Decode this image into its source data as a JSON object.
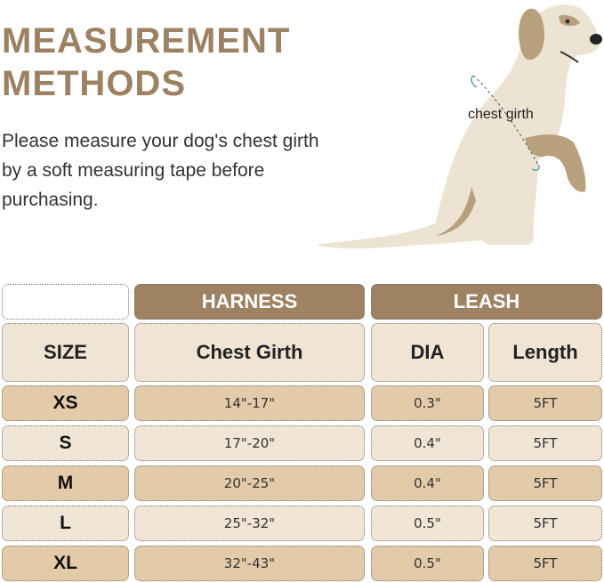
{
  "heading": {
    "line1": "MEASUREMENT",
    "line2": "METHODS"
  },
  "description": "Please measure your dog's chest girth by a soft measuring tape before purchasing.",
  "illustration": {
    "label": "chest girth",
    "colors": {
      "body": "#ede3d2",
      "patch": "#b9a07d",
      "arrow": "#5fa3a8"
    }
  },
  "table": {
    "group_headers": [
      "HARNESS",
      "LEASH"
    ],
    "columns": [
      "SIZE",
      "Chest Girth",
      "DIA",
      "Length"
    ],
    "rows": [
      [
        "XS",
        "14\"-17\"",
        "0.3\"",
        "5FT"
      ],
      [
        "S",
        "17\"-20\"",
        "0.4\"",
        "5FT"
      ],
      [
        "M",
        "20\"-25\"",
        "0.4\"",
        "5FT"
      ],
      [
        "L",
        "25\"-32\"",
        "0.5\"",
        "5FT"
      ],
      [
        "XL",
        "32\"-43\"",
        "0.5\"",
        "5FT"
      ]
    ],
    "colors": {
      "header": "#9e8262",
      "row_dark": "#e3cba9",
      "row_light": "#f1e5d5"
    }
  }
}
